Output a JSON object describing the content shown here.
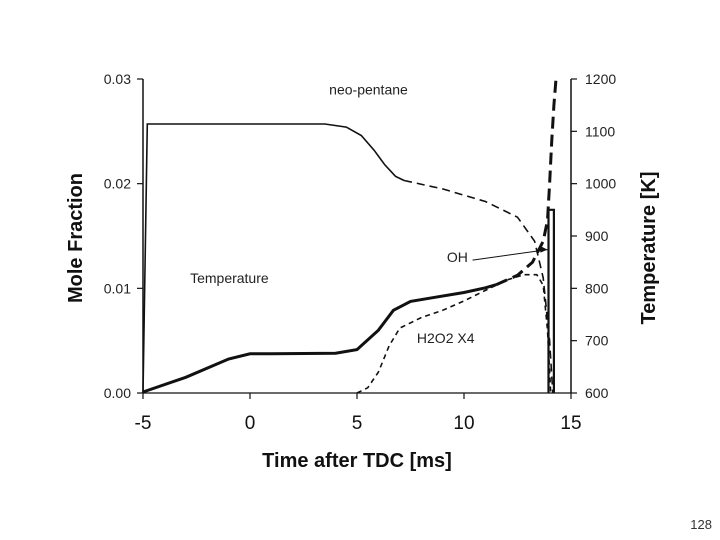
{
  "page": {
    "number": "128"
  },
  "chart_data": {
    "type": "line",
    "xlabel": "Time after TDC [ms]",
    "ylabel_left": "Mole Fraction",
    "ylabel_right": "Temperature [K]",
    "xlim": [
      -5,
      15
    ],
    "ylim_left": [
      0.0,
      0.03
    ],
    "ylim_right": [
      600,
      1200
    ],
    "x_ticks": [
      "-5",
      "0",
      "5",
      "10",
      "15"
    ],
    "y_left_ticks": [
      "0.00",
      "0.01",
      "0.02",
      "0.03"
    ],
    "y_right_ticks": [
      "600",
      "700",
      "800",
      "900",
      "1000",
      "1100",
      "1200"
    ],
    "grid": false,
    "series": [
      {
        "name": "neo-pentane",
        "axis": "left",
        "style": "solid-then-dashed",
        "solid_x": [
          -5,
          -4.8,
          0,
          3.5,
          4.5,
          5.2,
          5.8,
          6.3,
          6.8,
          7.2
        ],
        "solid_y": [
          0.0,
          0.0257,
          0.0257,
          0.0257,
          0.0254,
          0.0246,
          0.0232,
          0.0218,
          0.0207,
          0.0203
        ],
        "dashed_x": [
          7.2,
          9,
          11,
          12.5,
          13.3,
          13.7,
          14.0,
          14.15
        ],
        "dashed_y": [
          0.0203,
          0.0195,
          0.0183,
          0.0168,
          0.0145,
          0.011,
          0.005,
          0.0
        ]
      },
      {
        "name": "Temperature",
        "axis": "right",
        "style": "solid-then-dashed",
        "solid_x": [
          -5,
          -3,
          -1,
          0,
          1,
          4,
          5,
          6,
          6.7,
          7.5,
          8.5,
          10,
          11,
          11.5
        ],
        "solid_y": [
          602,
          630,
          665,
          675,
          675,
          676,
          683,
          720,
          758,
          775,
          782,
          792,
          801,
          807
        ],
        "dashed_x": [
          11.5,
          12.5,
          13.2,
          13.7,
          13.9,
          14.0,
          14.1,
          14.2,
          14.3
        ],
        "dashed_y": [
          807,
          825,
          850,
          890,
          930,
          1000,
          1080,
          1150,
          1200
        ]
      },
      {
        "name": "OH",
        "axis": "left",
        "style": "solid",
        "x": [
          13.95,
          13.95,
          14.2,
          14.2
        ],
        "y": [
          0.0,
          0.0175,
          0.0175,
          0.0
        ]
      },
      {
        "name": "H2O2 X4",
        "axis": "left",
        "style": "dashed",
        "x": [
          5,
          5.5,
          6,
          6.5,
          7,
          8,
          9,
          10,
          11,
          12,
          12.8,
          13.4,
          13.7,
          13.9,
          14.05
        ],
        "y": [
          0.0,
          0.0005,
          0.002,
          0.0045,
          0.0062,
          0.0072,
          0.0079,
          0.0088,
          0.0098,
          0.0108,
          0.0113,
          0.0113,
          0.0103,
          0.006,
          0.0
        ]
      }
    ],
    "annotations": [
      {
        "text": "neo-pentane",
        "x": 3.7,
        "y": 0.0285
      },
      {
        "text": "Temperature",
        "x": -2.8,
        "y": 0.0105
      },
      {
        "text": "OH",
        "x": 9.2,
        "y": 0.0125
      },
      {
        "text": "H2O2 X4",
        "x": 7.8,
        "y": 0.0048
      }
    ]
  }
}
